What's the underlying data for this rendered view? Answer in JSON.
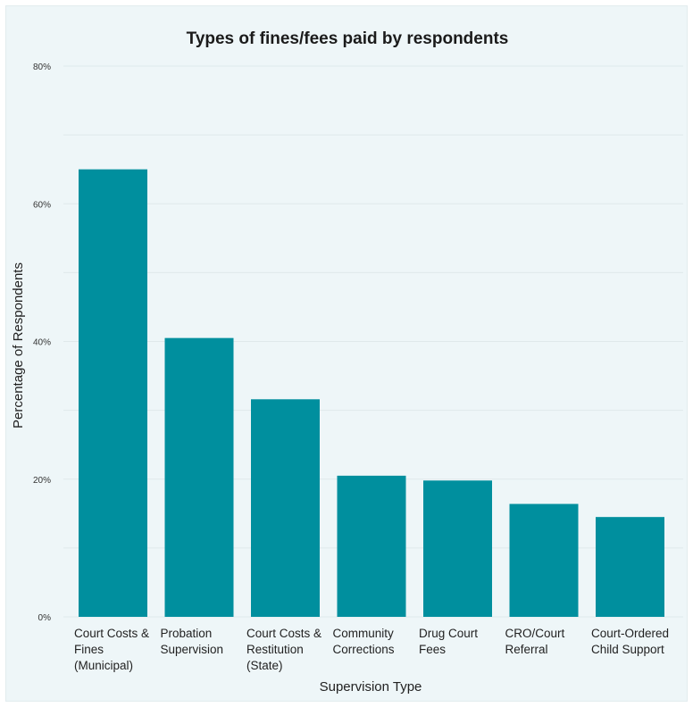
{
  "chart_data": {
    "type": "bar",
    "title": "Types of fines/fees paid by respondents",
    "xlabel": "Supervision Type",
    "ylabel": "Percentage of Respondents",
    "categories": [
      [
        "Court Costs &",
        "Fines",
        "(Municipal)"
      ],
      [
        "Probation",
        "Supervision"
      ],
      [
        "Court Costs &",
        "Restitution",
        "(State)"
      ],
      [
        "Community",
        "Corrections"
      ],
      [
        "Drug Court",
        "Fees"
      ],
      [
        "CRO/Court",
        "Referral"
      ],
      [
        "Court-Ordered",
        "Child Support"
      ]
    ],
    "values": [
      65,
      40.5,
      31.6,
      20.5,
      19.8,
      16.4,
      14.5
    ],
    "ylim": [
      0,
      80
    ],
    "yticks": [
      "0%",
      "20%",
      "40%",
      "60%",
      "80%"
    ],
    "ytick_values": [
      0,
      20,
      40,
      60,
      80
    ],
    "grid": true,
    "bar_color": "#008f9e",
    "grid_color": "#dfe9eb",
    "background": "#eef6f8"
  }
}
